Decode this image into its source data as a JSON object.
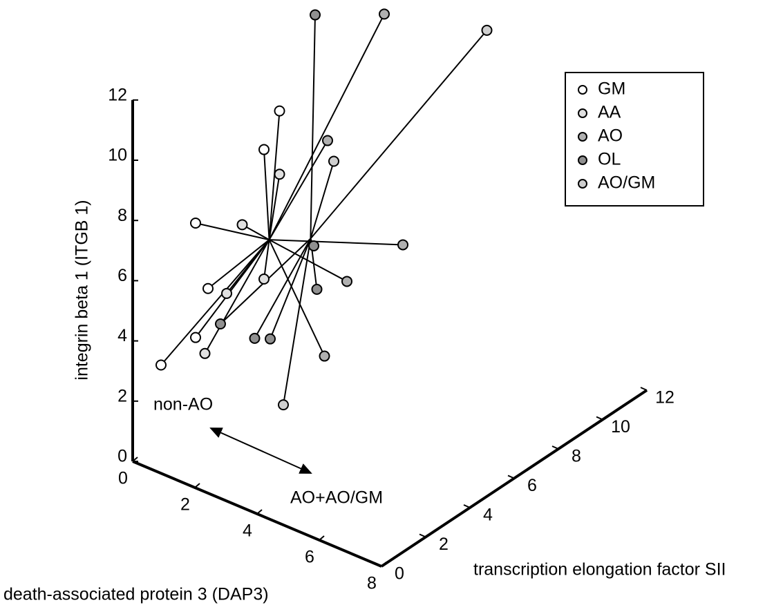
{
  "chart_data": {
    "type": "scatter3d",
    "xlabel": "death-associated protein 3 (DAP3)",
    "ylabel": "transcription elongation factor SII",
    "zlabel": "integrin beta 1 (ITGB 1)",
    "xlim": [
      0,
      8
    ],
    "ylim": [
      0,
      12
    ],
    "zlim": [
      0,
      12
    ],
    "xticks": [
      0,
      2,
      4,
      6,
      8
    ],
    "yticks": [
      0,
      2,
      4,
      6,
      8,
      10,
      12
    ],
    "zticks": [
      0,
      2,
      4,
      6,
      8,
      10,
      12
    ],
    "legend": "upper right",
    "annotations": [
      "non-AO",
      "AO+AO/GM"
    ],
    "series": [
      {
        "name": "GM",
        "color": "#ffffff",
        "x": [
          3.3,
          2.8,
          0.6,
          1.0,
          0.6,
          0.2
        ],
        "y": [
          2,
          2,
          2,
          2,
          2,
          1
        ],
        "z": [
          12.1,
          10.6,
          7.2,
          5.2,
          3.4,
          2.8
        ]
      },
      {
        "name": "AA",
        "color": "#e0e0e0",
        "x": [
          3.3,
          2.1,
          2.8,
          1.6,
          0.9
        ],
        "y": [
          2,
          2,
          2,
          2,
          2
        ],
        "z": [
          10.0,
          7.8,
          6.3,
          5.3,
          3.0
        ]
      },
      {
        "name": "AO",
        "color": "#b0b0b0",
        "x": [
          2.4,
          3.0,
          1.2,
          1.9,
          2.0
        ],
        "y": [
          8,
          8,
          8,
          6,
          6
        ],
        "z": [
          12.0,
          4.6,
          2.6,
          1.4,
          8.6
        ]
      },
      {
        "name": "OL",
        "color": "#909090",
        "x": [
          4.4,
          4.5,
          1.4,
          2.5,
          3.0,
          1.6
        ],
        "y": [
          2,
          2,
          2,
          2,
          2,
          6
        ],
        "z": [
          8.1,
          6.7,
          4.2,
          4.2,
          4.4,
          12.6
        ]
      },
      {
        "name": "AO/GM",
        "color": "#cfcfcf",
        "x": [
          5.7,
          2.2,
          2.0
        ],
        "y": [
          8,
          6,
          4
        ],
        "z": [
          12.9,
          8.0,
          0.8
        ]
      }
    ]
  }
}
